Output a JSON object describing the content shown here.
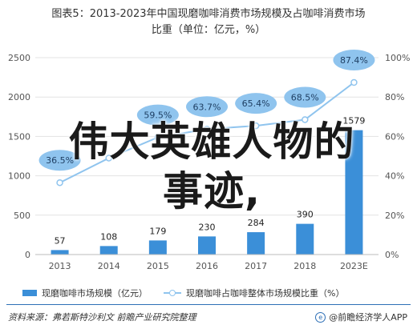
{
  "title_line1": "图表5：2013-2023年中国现磨咖啡消费市场规模及占咖啡消费市场",
  "title_line2": "比重（单位：亿元，%）",
  "chart_data": {
    "type": "bar",
    "categories": [
      "2013",
      "2014",
      "2015",
      "2016",
      "2017",
      "2018",
      "2023E"
    ],
    "series": [
      {
        "name": "现磨咖啡市场规模（亿元）",
        "type": "bar",
        "axis": "left",
        "values": [
          57,
          108,
          179,
          230,
          284,
          390,
          1579
        ],
        "labels": [
          "57",
          "108",
          "179",
          "230",
          "284",
          "390",
          "1579"
        ]
      },
      {
        "name": "现磨咖啡占咖啡整体市场规模比重（%）",
        "type": "line",
        "axis": "right",
        "values": [
          36.5,
          49.0,
          59.5,
          63.7,
          65.4,
          68.5,
          87.4
        ],
        "labels": [
          "36.5%",
          "",
          "59.5%",
          "63.7%",
          "65.4%",
          "68.5%",
          "87.4%"
        ]
      }
    ],
    "y_left_ticks": [
      "0",
      "500",
      "1000",
      "1500",
      "2000",
      "2500"
    ],
    "y_left_lim": [
      0,
      2500
    ],
    "y_right_ticks": [
      "0%",
      "20%",
      "40%",
      "60%",
      "80%",
      "100%"
    ],
    "y_right_lim": [
      0,
      100
    ],
    "grid": true,
    "legend_position": "bottom",
    "colors": {
      "bar": "#3b8fd8",
      "line": "#8fc4ee",
      "label_bubble": "#8fc4ee",
      "axis_text": "#555555"
    }
  },
  "overlay_text": {
    "line1": "伟大英雄人物的",
    "line2": "事迹,"
  },
  "source": "资料来源：弗若斯特沙利文 前瞻产业研究院整理",
  "brand": "@前瞻经济学人APP",
  "brand_logo": "e"
}
